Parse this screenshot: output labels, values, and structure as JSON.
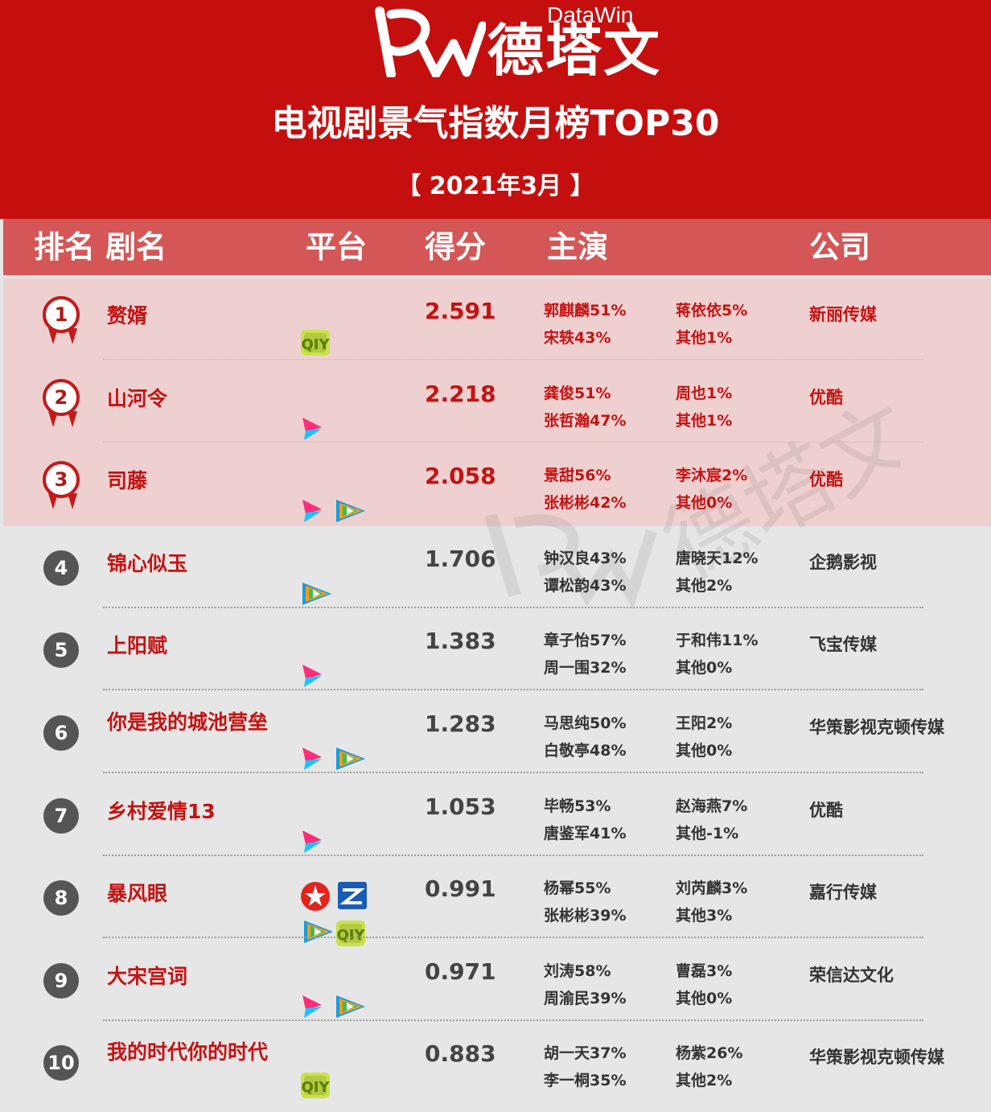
{
  "header": {
    "logo_en": "DataWin",
    "logo_cn": "德塔文",
    "title": "电视剧景气指数月榜TOP30",
    "date": "【  2021年3月  】"
  },
  "columns": {
    "rank_name": "排名 剧名",
    "platform": "平台",
    "score": "得分",
    "cast": "主演",
    "company": "公司"
  },
  "rows": [
    {
      "rank": "1",
      "name": "赘婿",
      "score": "2.591",
      "a1": "郭麒麟51%",
      "a2": "宋轶43%",
      "a3": "蒋依依5%",
      "a4": "其他1%",
      "company": "新丽传媒",
      "platforms": [
        "iqiyi-icon"
      ]
    },
    {
      "rank": "2",
      "name": "山河令",
      "score": "2.218",
      "a1": "龚俊51%",
      "a2": "张哲瀚47%",
      "a3": "周也1%",
      "a4": "其他1%",
      "company": "优酷",
      "platforms": [
        "youku-icon"
      ]
    },
    {
      "rank": "3",
      "name": "司藤",
      "score": "2.058",
      "a1": "景甜56%",
      "a2": "张彬彬42%",
      "a3": "李沐宸2%",
      "a4": "其他0%",
      "company": "优酷",
      "platforms": [
        "youku-icon",
        "tencent-video-icon"
      ]
    },
    {
      "rank": "4",
      "name": "锦心似玉",
      "score": "1.706",
      "a1": "钟汉良43%",
      "a2": "谭松韵43%",
      "a3": "唐晓天12%",
      "a4": "其他2%",
      "company": "企鹅影视",
      "platforms": [
        "tencent-video-icon"
      ]
    },
    {
      "rank": "5",
      "name": "上阳赋",
      "score": "1.383",
      "a1": "章子怡57%",
      "a2": "周一围32%",
      "a3": "于和伟11%",
      "a4": "其他0%",
      "company": "飞宝传媒",
      "platforms": [
        "youku-icon"
      ]
    },
    {
      "rank": "6",
      "name": "你是我的城池营垒",
      "score": "1.283",
      "a1": "马思纯50%",
      "a2": "白敬亭48%",
      "a3": "王阳2%",
      "a4": "其他0%",
      "company": "华策影视克顿传媒",
      "platforms": [
        "youku-icon",
        "tencent-video-icon"
      ]
    },
    {
      "rank": "7",
      "name": "乡村爱情13",
      "score": "1.053",
      "a1": "毕畅53%",
      "a2": "唐鉴军41%",
      "a3": "赵海燕7%",
      "a4": "其他-1%",
      "company": "优酷",
      "platforms": [
        "youku-icon"
      ]
    },
    {
      "rank": "8",
      "name": "暴风眼",
      "score": "0.991",
      "a1": "杨幂55%",
      "a2": "张彬彬39%",
      "a3": "刘芮麟3%",
      "a4": "其他3%",
      "company": "嘉行传媒",
      "platforms": [
        "dragon-tv-icon",
        "zhejiang-tv-icon",
        "tencent-video-icon",
        "iqiyi-icon"
      ]
    },
    {
      "rank": "9",
      "name": "大宋宫词",
      "score": "0.971",
      "a1": "刘涛58%",
      "a2": "周渝民39%",
      "a3": "曹磊3%",
      "a4": "其他0%",
      "company": "荣信达文化",
      "platforms": [
        "youku-icon",
        "tencent-video-icon"
      ]
    },
    {
      "rank": "10",
      "name": "我的时代你的时代",
      "score": "0.883",
      "a1": "胡一天37%",
      "a2": "李一桐35%",
      "a3": "杨紫26%",
      "a4": "其他2%",
      "company": "华策影视克顿传媒",
      "platforms": [
        "iqiyi-icon"
      ]
    }
  ],
  "colors": {
    "brand_red": "#c50f0f",
    "header_band": "#d45656",
    "top3_band": "#efd0d0",
    "name_red": "#c41313"
  }
}
